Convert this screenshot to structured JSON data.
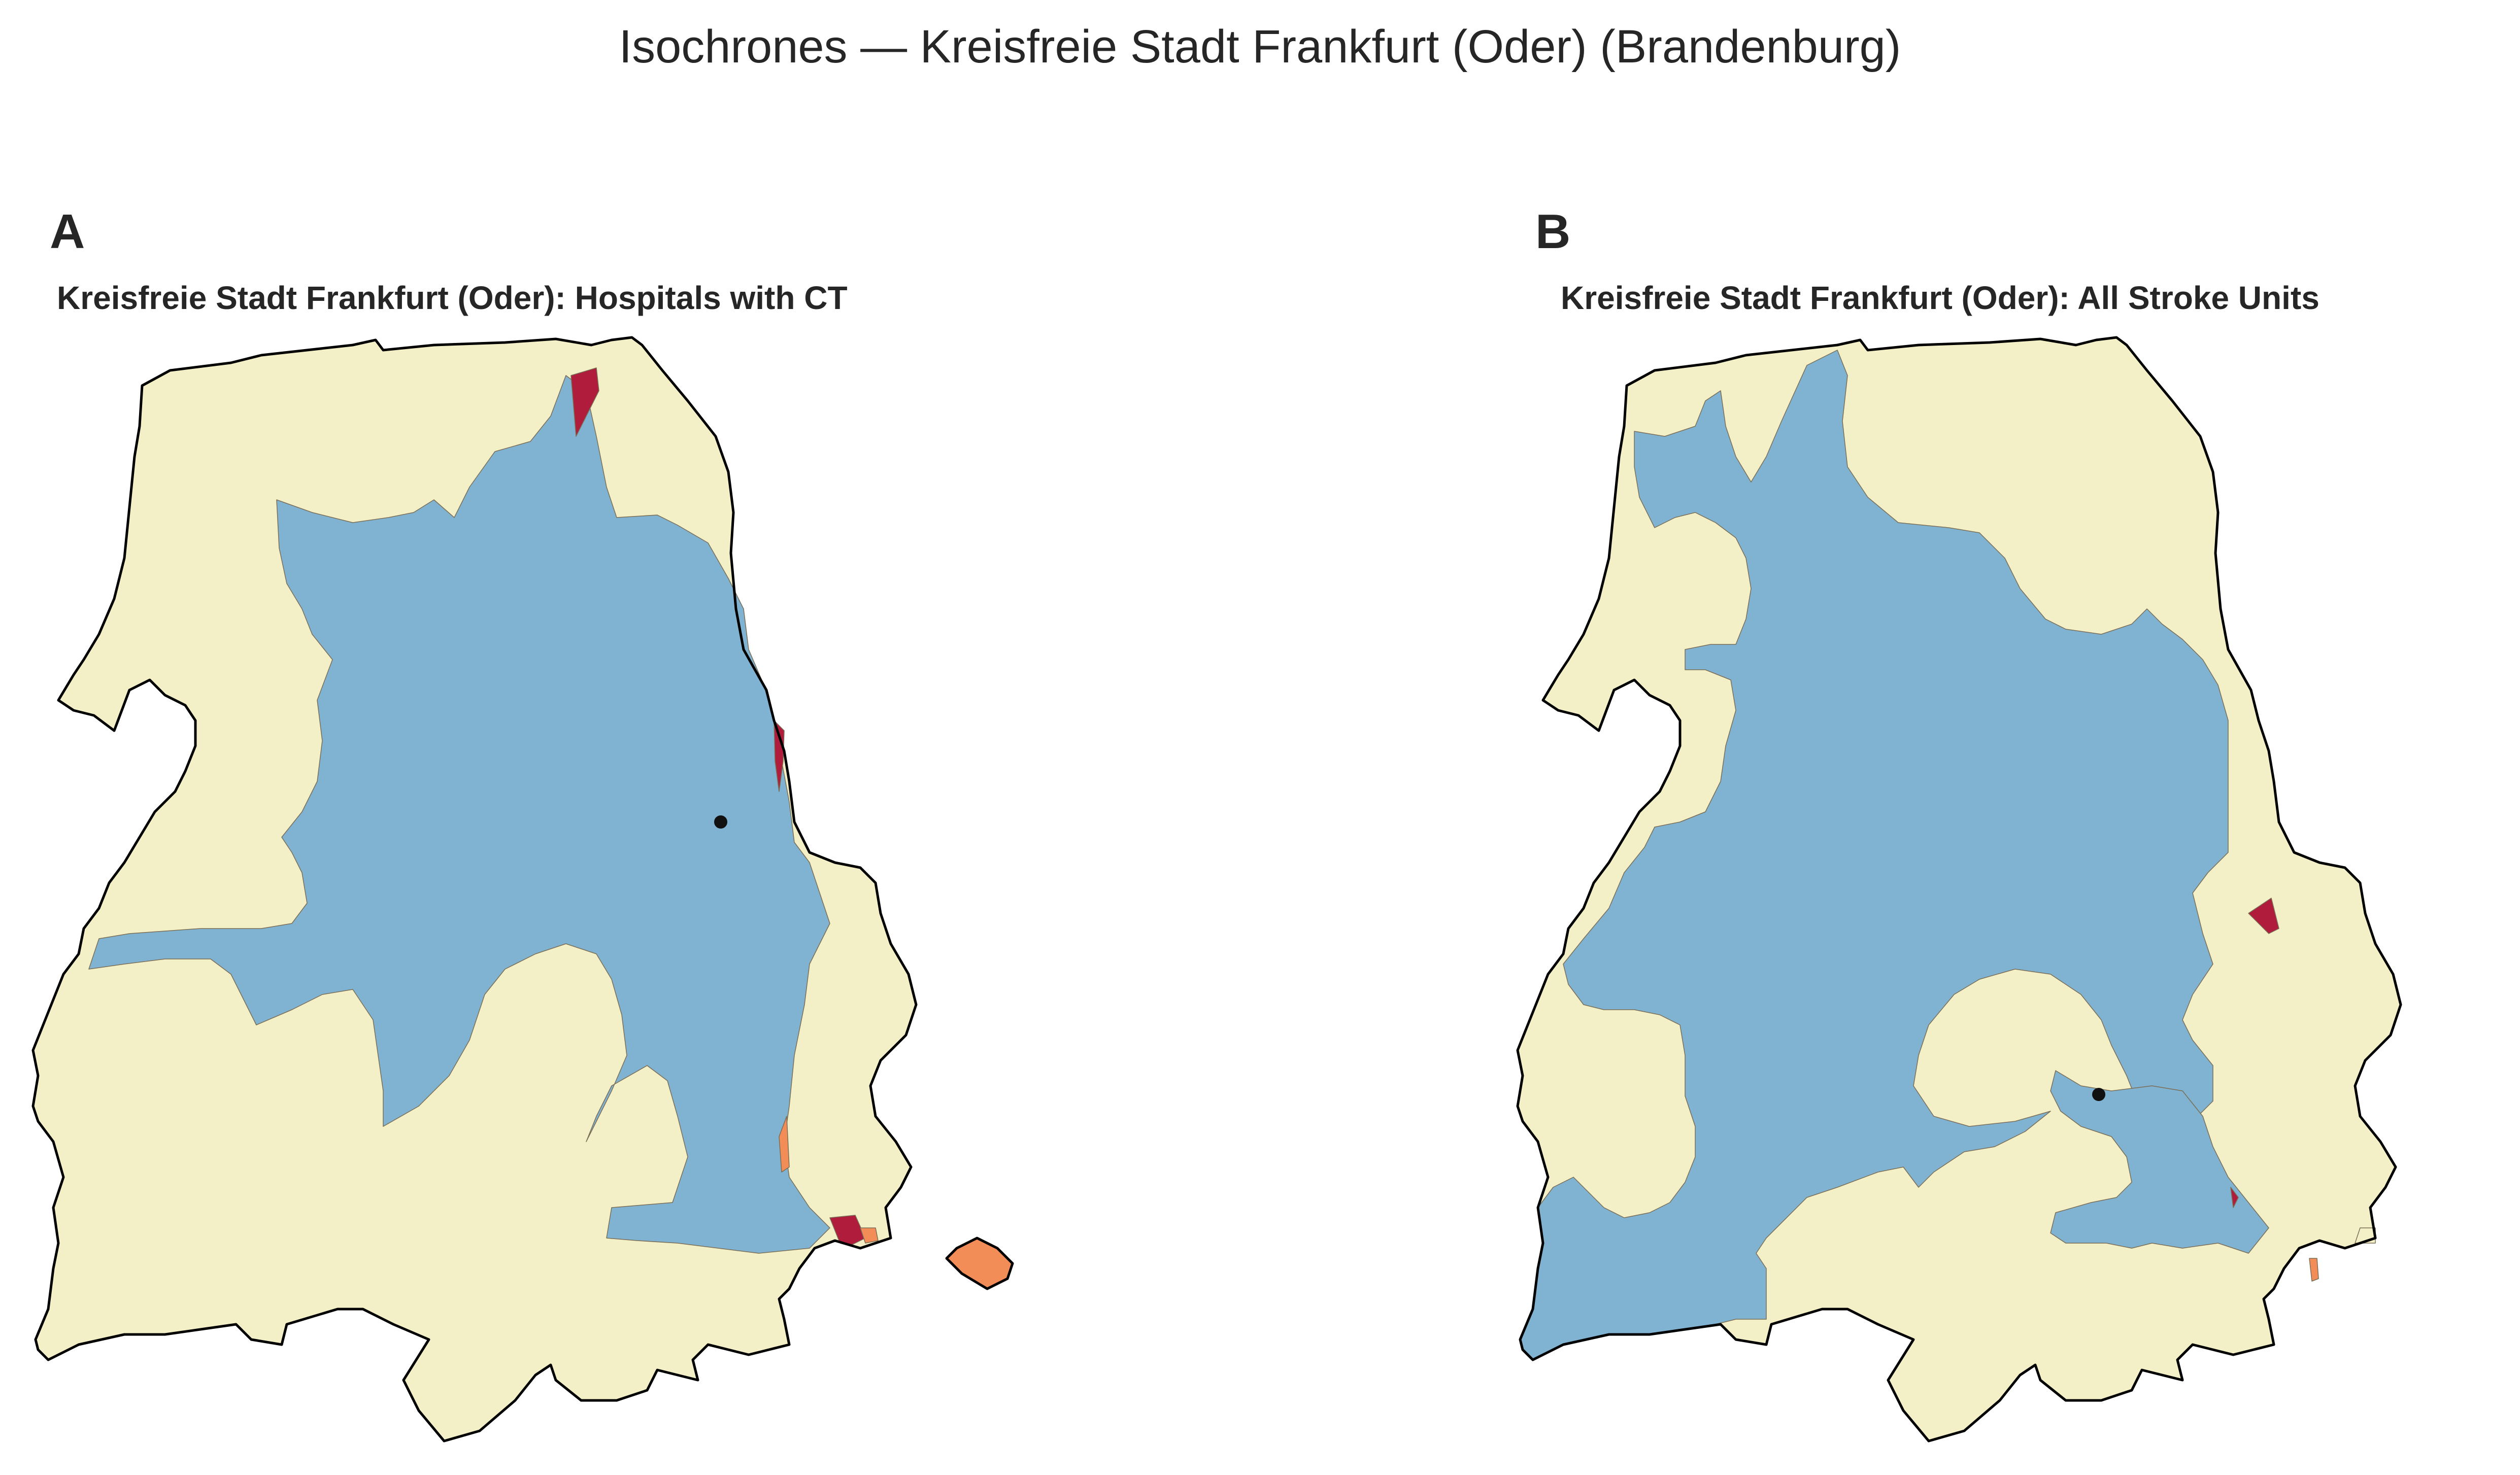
{
  "figure": {
    "title": "Isochrones — Kreisfreie Stadt Frankfurt (Oder) (Brandenburg)"
  },
  "colors": {
    "band_near": "#80b2d1",
    "band_mid": "#f3efc6",
    "band_far": "#f28d57",
    "band_farthest": "#af1c3c",
    "facility_marker": "#111111",
    "outline": "#000000"
  },
  "panels": [
    {
      "letter": "A",
      "title": "Kreisfreie Stadt Frankfurt (Oder): Hospitals with CT",
      "facilities": 1
    },
    {
      "letter": "B",
      "title": "Kreisfreie Stadt Frankfurt (Oder): All Stroke Units",
      "facilities": 1
    }
  ]
}
